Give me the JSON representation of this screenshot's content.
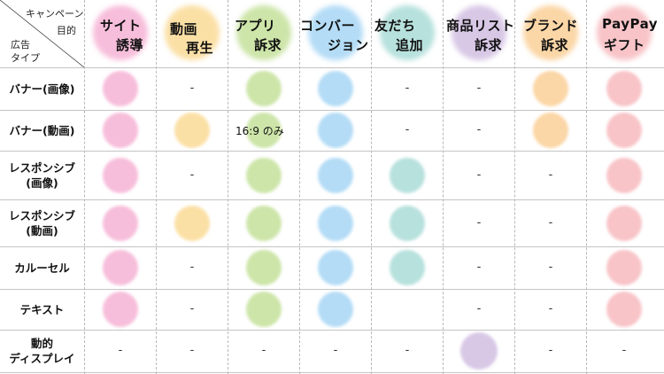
{
  "corner": {
    "campaign_label": "キャンペーン",
    "purpose_label": "目的",
    "ad_label": "広告",
    "type_label": "タイプ"
  },
  "columns": [
    {
      "name": "site",
      "line1": "サイト",
      "line2": "誘導",
      "color": "#f7bedb"
    },
    {
      "name": "video",
      "line1": "動画",
      "line2": "再生",
      "color": "#fbe0a6"
    },
    {
      "name": "app",
      "line1": "アプリ",
      "line2": "訴求",
      "color": "#cde5a9"
    },
    {
      "name": "conversion",
      "line1": "コンバー",
      "line2": "ジョン",
      "color": "#b4dcf6"
    },
    {
      "name": "friends",
      "line1": "友だち",
      "line2": "追加",
      "color": "#b7e1dd"
    },
    {
      "name": "product-list",
      "line1": "商品リスト",
      "line2": "訴求",
      "color": "#d8c8e6"
    },
    {
      "name": "brand",
      "line1": "ブランド",
      "line2": "訴求",
      "color": "#fbd6a6"
    },
    {
      "name": "paypay",
      "line1": "PayPay",
      "line2": "ギフト",
      "color": "#f8c4c8"
    }
  ],
  "rows": [
    {
      "name": "banner-image",
      "label": "バナー(画像)",
      "cells": [
        "dot",
        "-",
        "dot",
        "dot",
        "-",
        "-",
        "dot",
        "dot"
      ]
    },
    {
      "name": "banner-video",
      "label": "バナー(動画)",
      "cells": [
        "dot",
        "dot",
        "16:9 のみ",
        "dot",
        "-",
        "-",
        "dot",
        "dot"
      ]
    },
    {
      "name": "responsive-image",
      "label": "レスポンシブ\n(画像)",
      "cells": [
        "dot",
        "-",
        "dot",
        "dot",
        "dot",
        "-",
        "-",
        "dot"
      ]
    },
    {
      "name": "responsive-video",
      "label": "レスポンシブ\n(動画)",
      "cells": [
        "dot",
        "dot",
        "dot",
        "dot",
        "dot",
        "-",
        "-",
        "dot"
      ]
    },
    {
      "name": "carousel",
      "label": "カルーセル",
      "cells": [
        "dot",
        "-",
        "dot",
        "dot",
        "dot",
        "-",
        "-",
        "dot"
      ]
    },
    {
      "name": "text",
      "label": "テキスト",
      "cells": [
        "dot",
        "-",
        "dot",
        "dot",
        "",
        "-",
        "-",
        "dot"
      ]
    },
    {
      "name": "dynamic-display",
      "label": "動的\nディスプレイ",
      "cells": [
        "-",
        "-",
        "-",
        "-",
        "-",
        "dot",
        "-",
        "-"
      ]
    }
  ]
}
